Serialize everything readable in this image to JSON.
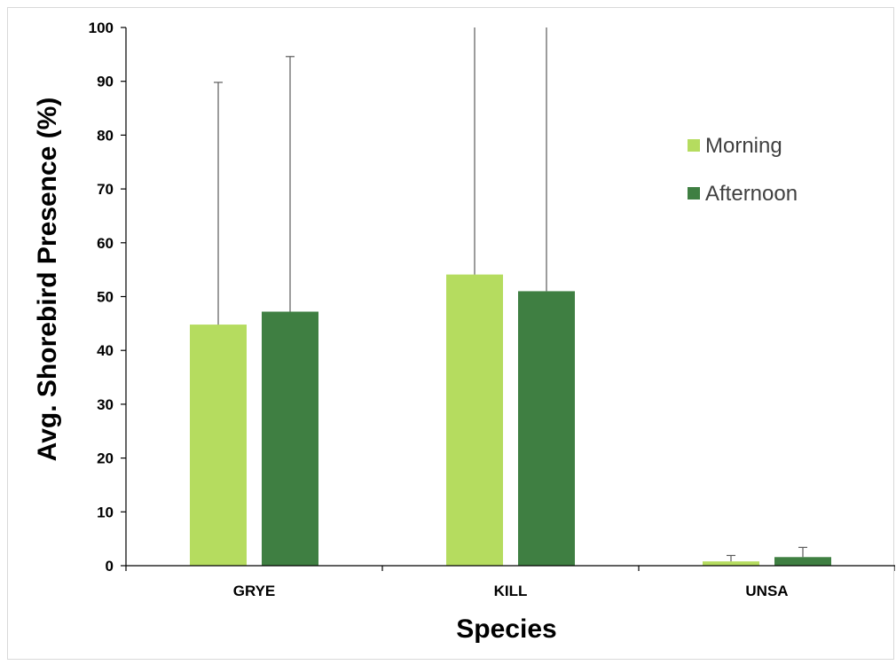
{
  "chart_data": {
    "type": "bar",
    "xlabel": "Species",
    "ylabel": "Avg. Shorebird Presence (%)",
    "ylim": [
      0,
      100
    ],
    "yticks": [
      0,
      10,
      20,
      30,
      40,
      50,
      60,
      70,
      80,
      90,
      100
    ],
    "categories": [
      "GRYE",
      "KILL",
      "UNSA"
    ],
    "legend_position": "right-upper",
    "grid": false,
    "series": [
      {
        "name": "Morning",
        "color": "#b5dc5f",
        "values": [
          44.8,
          54.1,
          0.8
        ],
        "error_upper": [
          89.8,
          100,
          1.9
        ]
      },
      {
        "name": "Afternoon",
        "color": "#3f7f42",
        "values": [
          47.2,
          51.0,
          1.6
        ],
        "error_upper": [
          94.6,
          100,
          3.4
        ]
      }
    ]
  }
}
